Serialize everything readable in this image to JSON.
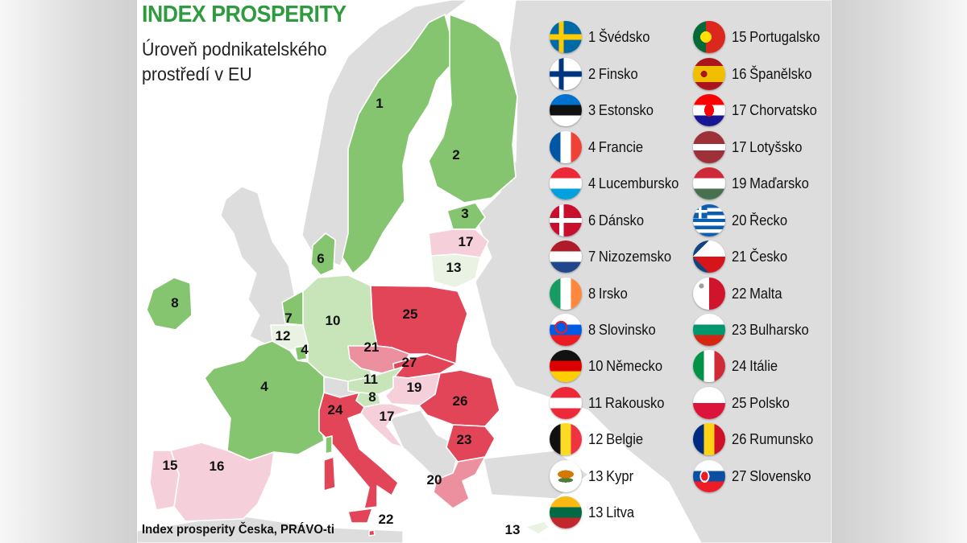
{
  "header": {
    "title": "INDEX PROSPERITY",
    "subtitle": "Úroveň podnikatelského prostředí v EU"
  },
  "source": "Index prosperity Česka, PRÁVO-ti",
  "colors": {
    "rank_1_11": "#86c570",
    "rank_1_11_light": "#c8e5b9",
    "rank_12_13": "#eaf3e3",
    "rank_15_17": "#f5d0da",
    "rank_19_21": "#ec8f9f",
    "rank_22_27": "#e24558",
    "land_outside": "#dddddd",
    "water": "#ffffff"
  },
  "map_labels": [
    {
      "id": "se",
      "text": "1"
    },
    {
      "id": "fi",
      "text": "2"
    },
    {
      "id": "ee",
      "text": "3"
    },
    {
      "id": "lv",
      "text": "17"
    },
    {
      "id": "lt",
      "text": "13"
    },
    {
      "id": "dk",
      "text": "6"
    },
    {
      "id": "ie",
      "text": "8"
    },
    {
      "id": "nl",
      "text": "7"
    },
    {
      "id": "be",
      "text": "12"
    },
    {
      "id": "lu",
      "text": "4"
    },
    {
      "id": "de",
      "text": "10"
    },
    {
      "id": "pl",
      "text": "25"
    },
    {
      "id": "cz",
      "text": "21"
    },
    {
      "id": "sk",
      "text": "27"
    },
    {
      "id": "at",
      "text": "11"
    },
    {
      "id": "hu",
      "text": "19"
    },
    {
      "id": "si",
      "text": "8"
    },
    {
      "id": "hr",
      "text": "17"
    },
    {
      "id": "ro",
      "text": "26"
    },
    {
      "id": "fr",
      "text": "4"
    },
    {
      "id": "it",
      "text": "24"
    },
    {
      "id": "bg",
      "text": "23"
    },
    {
      "id": "gr",
      "text": "20"
    },
    {
      "id": "pt",
      "text": "15"
    },
    {
      "id": "es",
      "text": "16"
    },
    {
      "id": "mt",
      "text": "22"
    },
    {
      "id": "cy",
      "text": "13"
    }
  ],
  "legend_left": [
    {
      "rank": "1",
      "name": "Švédsko",
      "flag": "sweden-flag"
    },
    {
      "rank": "2",
      "name": "Finsko",
      "flag": "finland-flag"
    },
    {
      "rank": "3",
      "name": "Estonsko",
      "flag": "estonia-flag"
    },
    {
      "rank": "4",
      "name": "Francie",
      "flag": "france-flag"
    },
    {
      "rank": "4",
      "name": "Lucembursko",
      "flag": "luxembourg-flag"
    },
    {
      "rank": "6",
      "name": "Dánsko",
      "flag": "denmark-flag"
    },
    {
      "rank": "7",
      "name": "Nizozemsko",
      "flag": "netherlands-flag"
    },
    {
      "rank": "8",
      "name": "Irsko",
      "flag": "ireland-flag"
    },
    {
      "rank": "8",
      "name": "Slovinsko",
      "flag": "slovenia-flag"
    },
    {
      "rank": "10",
      "name": "Německo",
      "flag": "germany-flag"
    },
    {
      "rank": "11",
      "name": "Rakousko",
      "flag": "austria-flag"
    },
    {
      "rank": "12",
      "name": "Belgie",
      "flag": "belgium-flag"
    },
    {
      "rank": "13",
      "name": "Kypr",
      "flag": "cyprus-flag"
    },
    {
      "rank": "13",
      "name": "Litva",
      "flag": "lithuania-flag"
    }
  ],
  "legend_right": [
    {
      "rank": "15",
      "name": "Portugalsko",
      "flag": "portugal-flag"
    },
    {
      "rank": "16",
      "name": "Španělsko",
      "flag": "spain-flag"
    },
    {
      "rank": "17",
      "name": "Chorvatsko",
      "flag": "croatia-flag"
    },
    {
      "rank": "17",
      "name": "Lotyšsko",
      "flag": "latvia-flag"
    },
    {
      "rank": "19",
      "name": "Maďarsko",
      "flag": "hungary-flag"
    },
    {
      "rank": "20",
      "name": "Řecko",
      "flag": "greece-flag"
    },
    {
      "rank": "21",
      "name": "Česko",
      "flag": "czechia-flag"
    },
    {
      "rank": "22",
      "name": "Malta",
      "flag": "malta-flag"
    },
    {
      "rank": "23",
      "name": "Bulharsko",
      "flag": "bulgaria-flag"
    },
    {
      "rank": "24",
      "name": "Itálie",
      "flag": "italy-flag"
    },
    {
      "rank": "25",
      "name": "Polsko",
      "flag": "poland-flag"
    },
    {
      "rank": "26",
      "name": "Rumunsko",
      "flag": "romania-flag"
    },
    {
      "rank": "27",
      "name": "Slovensko",
      "flag": "slovakia-flag"
    }
  ]
}
